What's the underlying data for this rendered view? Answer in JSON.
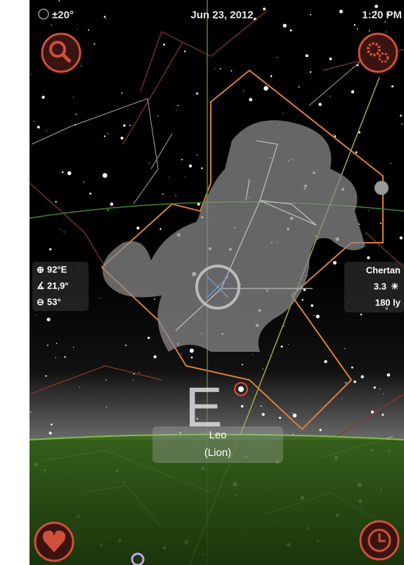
{
  "status_bar": {
    "field_of_view": "±20°",
    "date": "Jun 23, 2012",
    "time": "1:20 PM"
  },
  "pointing": {
    "azimuth": "92°E",
    "altitude": "21,9°",
    "elevation": "53°"
  },
  "star_info": {
    "name": "Chertan",
    "magnitude": "3.3",
    "distance": "180 ly"
  },
  "direction": "E",
  "constellation": {
    "name": "Leo",
    "translation": "(Lion)"
  }
}
